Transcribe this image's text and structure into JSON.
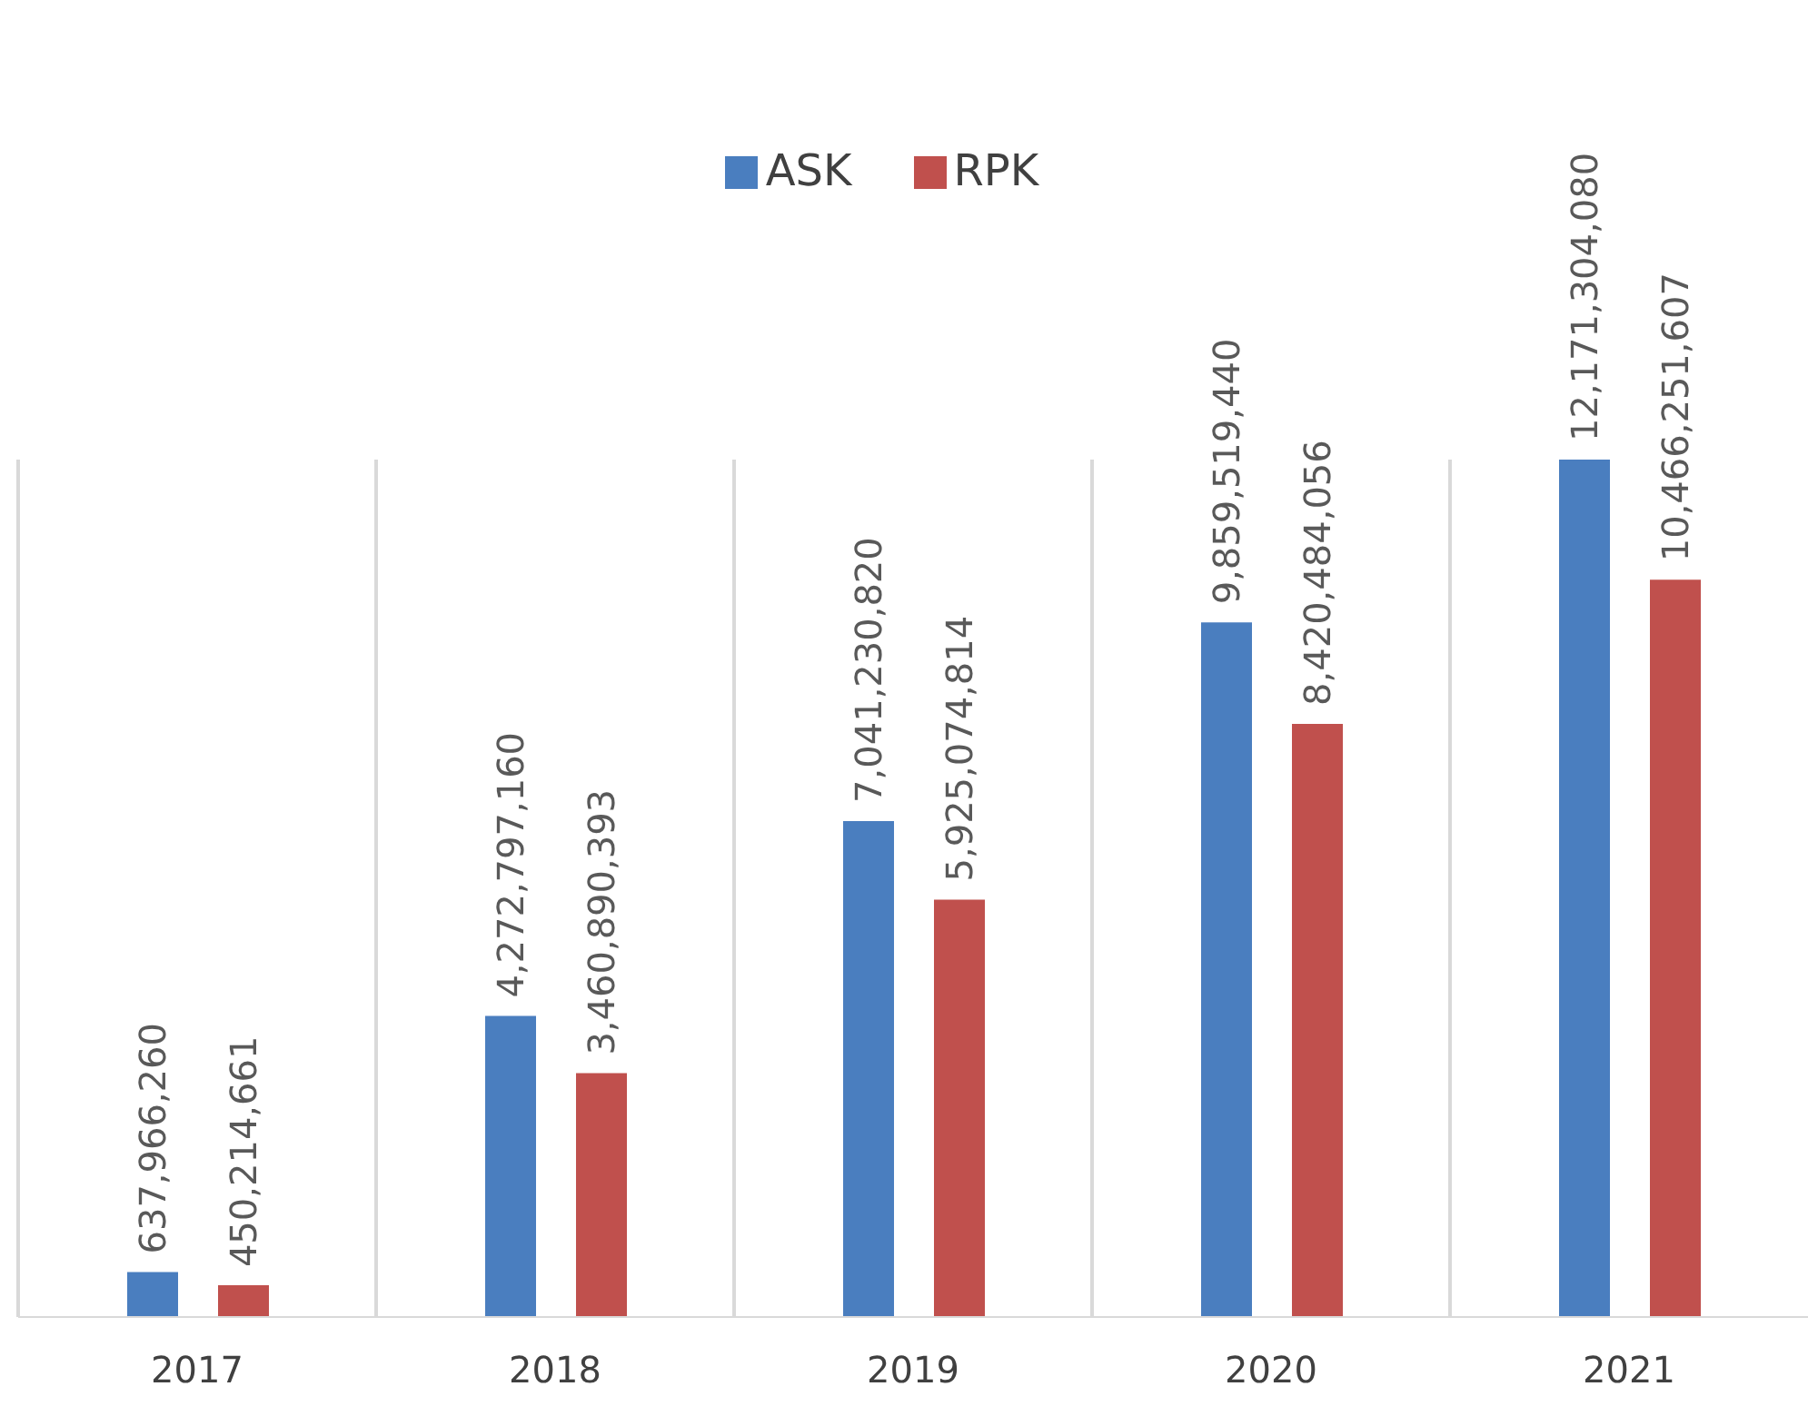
{
  "chart_data": {
    "type": "bar",
    "categories": [
      "2017",
      "2018",
      "2019",
      "2020",
      "2021"
    ],
    "series": [
      {
        "name": "ASK",
        "color": "#4a7ebf",
        "values": [
          637966260,
          4272797160,
          7041230820,
          9859519440,
          12171304080
        ],
        "value_labels": [
          "637,966,260",
          "4,272,797,160",
          "7,041,230,820",
          "9,859,519,440",
          "12,171,304,080"
        ]
      },
      {
        "name": "RPK",
        "color": "#c0504d",
        "values": [
          450214661,
          3460890393,
          5925074814,
          8420484056,
          10466251607
        ],
        "value_labels": [
          "450,214,661",
          "3,460,890,393",
          "5,925,074,814",
          "8,420,484,056",
          "10,466,251,607"
        ]
      }
    ],
    "legend": "top",
    "grid": "x"
  }
}
